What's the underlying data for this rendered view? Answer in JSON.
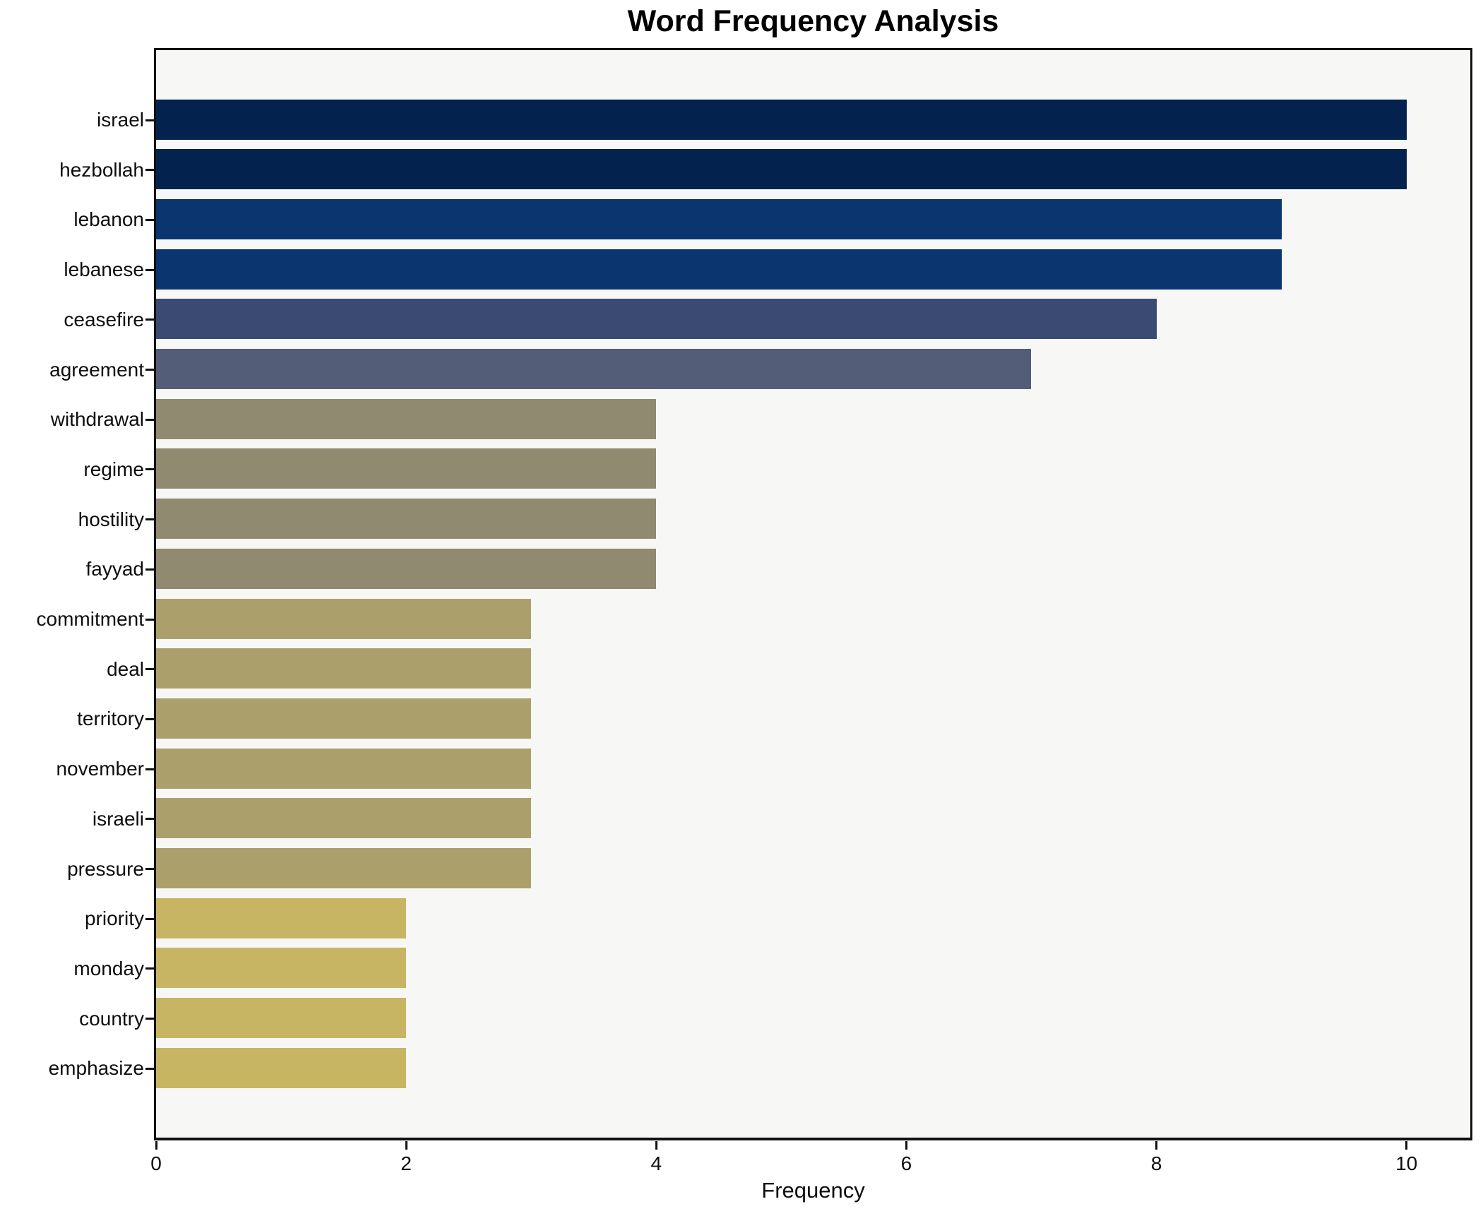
{
  "title": "Word Frequency Analysis",
  "chart_data": {
    "type": "bar",
    "orientation": "horizontal",
    "title": "Word Frequency Analysis",
    "xlabel": "Frequency",
    "ylabel": "",
    "categories": [
      "israel",
      "hezbollah",
      "lebanon",
      "lebanese",
      "ceasefire",
      "agreement",
      "withdrawal",
      "regime",
      "hostility",
      "fayyad",
      "commitment",
      "deal",
      "territory",
      "november",
      "israeli",
      "pressure",
      "priority",
      "monday",
      "country",
      "emphasize"
    ],
    "values": [
      10,
      10,
      9,
      9,
      8,
      7,
      4,
      4,
      4,
      4,
      3,
      3,
      3,
      3,
      3,
      3,
      2,
      2,
      2,
      2
    ],
    "bar_colors": [
      "#03234e",
      "#03234e",
      "#0a356e",
      "#0a356e",
      "#3b4a72",
      "#535d78",
      "#8f8a70",
      "#8f8a70",
      "#8f8a70",
      "#8f8a70",
      "#aba06b",
      "#aba06b",
      "#aba06b",
      "#aba06b",
      "#aba06b",
      "#aba06b",
      "#c7b563",
      "#c7b563",
      "#c7b563",
      "#c7b563"
    ],
    "xlim": [
      0,
      10.51
    ],
    "xticks": [
      0,
      2,
      4,
      6,
      8,
      10
    ],
    "grid": false,
    "legend": null,
    "plot_background": "#f7f7f6",
    "figure_background": "#ffffff",
    "spine_color": "#111111"
  }
}
